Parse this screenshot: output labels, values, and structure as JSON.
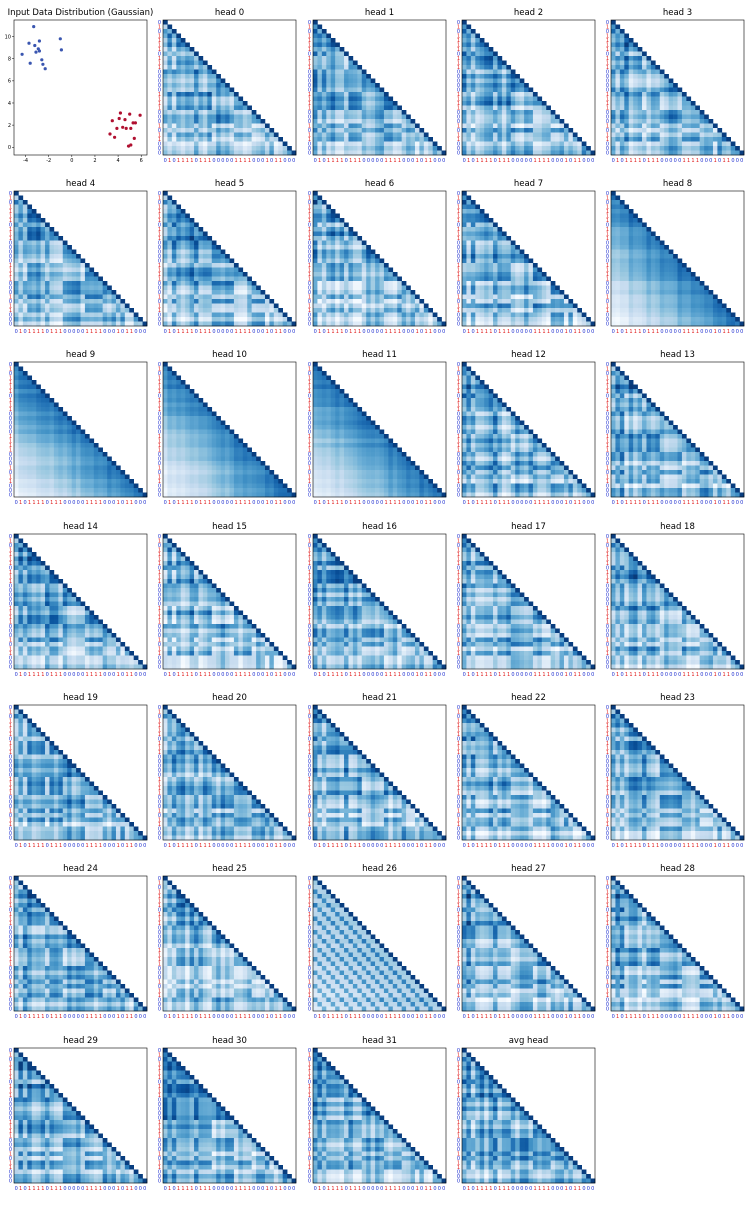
{
  "figure": {
    "background": "#ffffff"
  },
  "chart_data": [
    {
      "type": "scatter",
      "title": "Input Data Distribution (Gaussian)",
      "xlim": [
        -5,
        6.5
      ],
      "ylim": [
        -0.7,
        11.5
      ],
      "xticks": [
        -4,
        -2,
        0,
        2,
        4,
        6
      ],
      "yticks": [
        0,
        2,
        4,
        6,
        8,
        10
      ],
      "series": [
        {
          "color": "#3a56b0",
          "points": [
            [
              -4.3,
              8.4
            ],
            [
              -3.7,
              9.4
            ],
            [
              -3.6,
              7.6
            ],
            [
              -3.3,
              10.9
            ],
            [
              -3.2,
              9.2
            ],
            [
              -3.1,
              8.6
            ],
            [
              -2.9,
              8.9
            ],
            [
              -2.8,
              8.7
            ],
            [
              -2.8,
              9.6
            ],
            [
              -2.6,
              7.9
            ],
            [
              -2.5,
              7.5
            ],
            [
              -2.3,
              7.1
            ],
            [
              -1.0,
              9.8
            ],
            [
              -0.9,
              8.8
            ]
          ]
        },
        {
          "color": "#b01030",
          "points": [
            [
              3.3,
              1.2
            ],
            [
              3.5,
              2.4
            ],
            [
              3.7,
              0.9
            ],
            [
              3.9,
              1.7
            ],
            [
              4.1,
              2.6
            ],
            [
              4.2,
              3.1
            ],
            [
              4.4,
              1.8
            ],
            [
              4.6,
              2.5
            ],
            [
              4.7,
              1.7
            ],
            [
              4.9,
              0.1
            ],
            [
              5.0,
              3.0
            ],
            [
              5.1,
              1.7
            ],
            [
              5.1,
              0.2
            ],
            [
              5.3,
              2.2
            ],
            [
              5.4,
              0.8
            ],
            [
              5.5,
              2.2
            ],
            [
              5.9,
              2.9
            ]
          ]
        }
      ]
    },
    {
      "type": "heatmap",
      "shape": "lower-triangular attention map",
      "colormap": "Blues",
      "token_labels": [
        0,
        1,
        0,
        1,
        1,
        1,
        1,
        0,
        1,
        1,
        1,
        0,
        0,
        0,
        0,
        0,
        1,
        1,
        1,
        1,
        0,
        0,
        0,
        1,
        0,
        1,
        1,
        0,
        0,
        0
      ],
      "label_colors": {
        "0": "#1f2fcf",
        "1": "#e01818"
      },
      "panels": [
        "head 0",
        "head 1",
        "head 2",
        "head 3",
        "head 4",
        "head 5",
        "head 6",
        "head 7",
        "head 8",
        "head 9",
        "head 10",
        "head 11",
        "head 12",
        "head 13",
        "head 14",
        "head 15",
        "head 16",
        "head 17",
        "head 18",
        "head 19",
        "head 20",
        "head 21",
        "head 22",
        "head 23",
        "head 24",
        "head 25",
        "head 26",
        "head 27",
        "head 28",
        "head 29",
        "head 30",
        "head 31",
        "avg head"
      ],
      "panel_patterns": [
        "block",
        "block",
        "block",
        "block",
        "block",
        "block",
        "block",
        "block",
        "decay",
        "decay",
        "decay",
        "decay",
        "block",
        "block",
        "block",
        "block",
        "block",
        "block",
        "block",
        "block",
        "block",
        "block",
        "block",
        "block",
        "block",
        "block",
        "stripes",
        "block",
        "block",
        "block",
        "block",
        "block",
        "block"
      ]
    }
  ]
}
